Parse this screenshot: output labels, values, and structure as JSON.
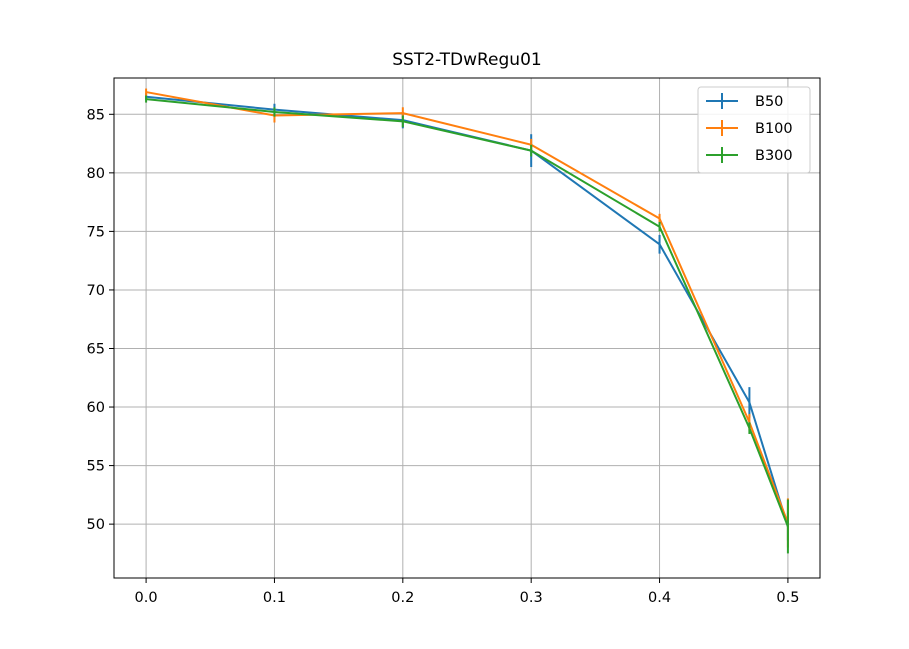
{
  "chart_data": {
    "type": "line",
    "title": "SST2-TDwRegu01",
    "xlabel": "",
    "ylabel": "",
    "xlim": [
      -0.025,
      0.525
    ],
    "ylim": [
      45.4,
      88.1
    ],
    "xticks": [
      0.0,
      0.1,
      0.2,
      0.3,
      0.4,
      0.5
    ],
    "xtick_labels": [
      "0.0",
      "0.1",
      "0.2",
      "0.3",
      "0.4",
      "0.5"
    ],
    "yticks": [
      50,
      55,
      60,
      65,
      70,
      75,
      80,
      85
    ],
    "ytick_labels": [
      "50",
      "55",
      "60",
      "65",
      "70",
      "75",
      "80",
      "85"
    ],
    "grid": true,
    "legend_position": "top-right",
    "x": [
      0.0,
      0.1,
      0.2,
      0.3,
      0.4,
      0.47,
      0.5
    ],
    "series": [
      {
        "name": "B50",
        "color": "#1f77b4",
        "values": [
          86.5,
          85.4,
          84.5,
          81.9,
          73.9,
          60.4,
          49.8
        ],
        "errors": [
          0.3,
          0.5,
          0.7,
          1.4,
          0.8,
          1.3,
          1.2
        ]
      },
      {
        "name": "B100",
        "color": "#ff7f0e",
        "values": [
          86.9,
          84.9,
          85.1,
          82.4,
          76.1,
          58.7,
          50.1
        ],
        "errors": [
          0.3,
          0.6,
          0.5,
          0.5,
          0.4,
          0.7,
          2.1
        ]
      },
      {
        "name": "B300",
        "color": "#2ca02c",
        "values": [
          86.3,
          85.2,
          84.4,
          81.9,
          75.4,
          58.2,
          49.8
        ],
        "errors": [
          0.3,
          0.4,
          0.5,
          0.5,
          0.4,
          0.5,
          2.3
        ]
      }
    ]
  }
}
